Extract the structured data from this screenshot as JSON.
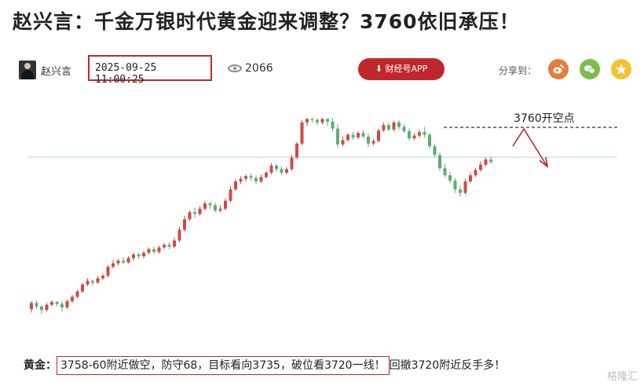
{
  "article": {
    "title": "赵兴言：千金万银时代黄金迎来调整？3760依旧承压！",
    "author": "赵兴言",
    "date": "2025-09-25 11:00:25",
    "views": "2066",
    "app_button": "财经号APP",
    "share_label": "分享到："
  },
  "share_icons": [
    "weibo-icon",
    "wechat-icon",
    "star-icon"
  ],
  "chart_data": {
    "type": "candlestick",
    "annotation": "3760开空点",
    "candles": [
      [
        40,
        47,
        36,
        49
      ],
      [
        47,
        43,
        40,
        50
      ],
      [
        43,
        39,
        35,
        45
      ],
      [
        39,
        45,
        37,
        47
      ],
      [
        45,
        48,
        43,
        50
      ],
      [
        48,
        46,
        43,
        49
      ],
      [
        46,
        42,
        37,
        49
      ],
      [
        42,
        49,
        40,
        51
      ],
      [
        49,
        54,
        47,
        56
      ],
      [
        54,
        60,
        52,
        62
      ],
      [
        60,
        68,
        58,
        70
      ],
      [
        68,
        72,
        66,
        75
      ],
      [
        72,
        70,
        67,
        74
      ],
      [
        70,
        75,
        69,
        78
      ],
      [
        75,
        78,
        73,
        80
      ],
      [
        78,
        88,
        76,
        90
      ],
      [
        88,
        92,
        86,
        96
      ],
      [
        92,
        95,
        90,
        97
      ],
      [
        95,
        93,
        91,
        99
      ],
      [
        93,
        98,
        92,
        100
      ],
      [
        98,
        102,
        95,
        104
      ],
      [
        102,
        100,
        97,
        104
      ],
      [
        100,
        104,
        98,
        106
      ],
      [
        104,
        108,
        102,
        110
      ],
      [
        108,
        105,
        103,
        111
      ],
      [
        105,
        110,
        103,
        112
      ],
      [
        110,
        113,
        108,
        115
      ],
      [
        113,
        111,
        108,
        116
      ],
      [
        111,
        118,
        109,
        121
      ],
      [
        118,
        130,
        116,
        134
      ],
      [
        130,
        142,
        128,
        146
      ],
      [
        142,
        150,
        140,
        152
      ],
      [
        150,
        148,
        144,
        155
      ],
      [
        148,
        154,
        146,
        157
      ],
      [
        154,
        160,
        152,
        163
      ],
      [
        160,
        158,
        154,
        162
      ],
      [
        158,
        152,
        150,
        161
      ],
      [
        152,
        154,
        150,
        158
      ],
      [
        154,
        163,
        152,
        166
      ],
      [
        163,
        176,
        161,
        180
      ],
      [
        176,
        185,
        174,
        188
      ],
      [
        185,
        188,
        182,
        191
      ],
      [
        188,
        191,
        185,
        193
      ],
      [
        191,
        189,
        186,
        194
      ],
      [
        189,
        185,
        182,
        192
      ],
      [
        185,
        190,
        183,
        193
      ],
      [
        190,
        195,
        188,
        197
      ],
      [
        195,
        203,
        193,
        206
      ],
      [
        203,
        199,
        196,
        205
      ],
      [
        199,
        195,
        192,
        202
      ],
      [
        195,
        199,
        193,
        201
      ],
      [
        199,
        212,
        197,
        215
      ],
      [
        212,
        228,
        210,
        230
      ],
      [
        228,
        252,
        226,
        255
      ],
      [
        252,
        256,
        248,
        257
      ],
      [
        256,
        255,
        252,
        257
      ],
      [
        255,
        252,
        249,
        257
      ],
      [
        252,
        256,
        250,
        257
      ],
      [
        256,
        253,
        248,
        257
      ],
      [
        253,
        245,
        242,
        257
      ],
      [
        245,
        227,
        223,
        250
      ],
      [
        227,
        232,
        225,
        236
      ],
      [
        232,
        238,
        230,
        240
      ],
      [
        238,
        235,
        232,
        241
      ],
      [
        235,
        240,
        233,
        242
      ],
      [
        240,
        236,
        234,
        243
      ],
      [
        236,
        228,
        224,
        240
      ],
      [
        228,
        231,
        226,
        233
      ],
      [
        231,
        243,
        229,
        245
      ],
      [
        243,
        249,
        241,
        252
      ],
      [
        249,
        244,
        242,
        252
      ],
      [
        244,
        252,
        242,
        254
      ],
      [
        252,
        247,
        244,
        255
      ],
      [
        247,
        242,
        240,
        250
      ],
      [
        242,
        234,
        231,
        245
      ],
      [
        234,
        237,
        232,
        240
      ],
      [
        237,
        241,
        235,
        244
      ],
      [
        241,
        238,
        235,
        247
      ],
      [
        238,
        225,
        222,
        240
      ],
      [
        225,
        215,
        212,
        228
      ],
      [
        215,
        200,
        197,
        218
      ],
      [
        200,
        192,
        190,
        205
      ],
      [
        192,
        186,
        183,
        196
      ],
      [
        186,
        176,
        172,
        189
      ],
      [
        176,
        172,
        168,
        180
      ],
      [
        172,
        185,
        170,
        188
      ],
      [
        185,
        192,
        183,
        195
      ],
      [
        192,
        198,
        190,
        200
      ],
      [
        198,
        204,
        196,
        208
      ],
      [
        204,
        210,
        202,
        212
      ],
      [
        210,
        207,
        205,
        213
      ]
    ]
  },
  "footer": {
    "label": "黄金：",
    "text": "3758-60附近做空，防守68，目标看向3735，破位看3720一线！",
    "tail": "回撤3720附近反手多！"
  },
  "watermark": "格隆汇",
  "colors": {
    "up": "#d04a43",
    "down": "#5bae72",
    "accent": "#c0272d"
  }
}
